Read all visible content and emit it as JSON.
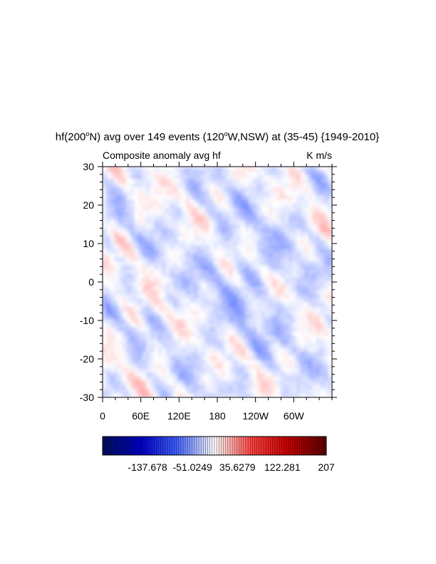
{
  "chart_data": {
    "type": "heatmap",
    "title_parts": [
      "hf(200",
      "o",
      "N) avg over 149 events (120",
      "o",
      "W,NSW) at (35-45) {1949-2010}"
    ],
    "left_string": "Composite anomaly avg hf",
    "right_string": "K m/s",
    "x_tick_labels": [
      "0",
      "60E",
      "120E",
      "180",
      "120W",
      "60W"
    ],
    "y_tick_labels": [
      "30",
      "20",
      "10",
      "0",
      "-10",
      "-20",
      "-30"
    ],
    "xlim": [
      0,
      360
    ],
    "ylim": [
      -30,
      30
    ],
    "field_description": "weak anomalies, mostly near zero, streaks tilted from southwest to northeast",
    "colorbar": {
      "labels": [
        "-137.678",
        "-51.0249",
        "35.6279",
        "122.281",
        "207"
      ],
      "min": -224.3,
      "max": 207,
      "n_boxes": 100,
      "colors": [
        "#001060",
        "#0000c8",
        "#4060ff",
        "#ffffff",
        "#ff4040",
        "#c80000",
        "#600000"
      ]
    }
  }
}
